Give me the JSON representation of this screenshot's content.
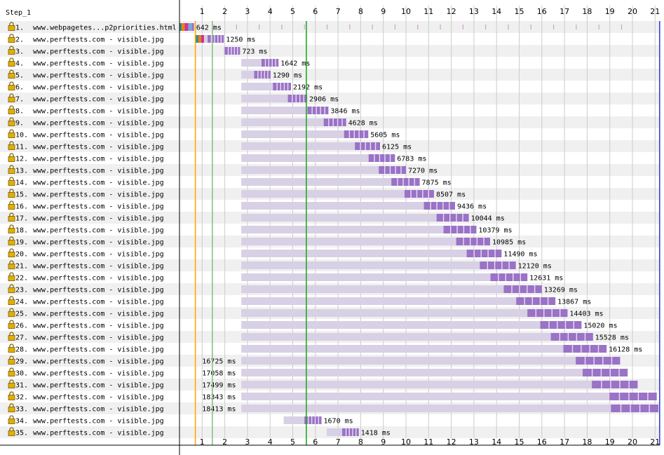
{
  "chart_data": {
    "type": "waterfall",
    "step_label": "Step_1",
    "x_unit": "seconds",
    "xlim": [
      0,
      21.2
    ],
    "x_ticks": [
      1,
      2,
      3,
      4,
      5,
      6,
      7,
      8,
      9,
      10,
      11,
      12,
      13,
      14,
      15,
      16,
      17,
      18,
      19,
      20,
      21
    ],
    "markers": [
      {
        "name": "start-render",
        "at": 0.7,
        "color": "#ffa800"
      },
      {
        "name": "first-paint",
        "at": 1.45,
        "color": "#88c188"
      },
      {
        "name": "dom-content-loaded",
        "at": 5.6,
        "color": "#22aa22"
      },
      {
        "name": "document-complete",
        "at": 21.2,
        "color": "#3344cc"
      }
    ],
    "requests": [
      {
        "num": "1.",
        "url": "www.webpagetes...p2priorities.html",
        "start": 0.0,
        "duration_ms": 642,
        "label": "642 ms"
      },
      {
        "num": "2.",
        "url": "www.perftests.com - visible.jpg",
        "start": 0.71,
        "duration_ms": 1250,
        "label": "1250 ms"
      },
      {
        "num": "3.",
        "url": "www.perftests.com - visible.jpg",
        "start": 1.95,
        "duration_ms": 723,
        "label": "723 ms"
      },
      {
        "num": "4.",
        "url": "www.perftests.com - visible.jpg",
        "start": 2.73,
        "duration_ms": 1642,
        "label": "1642 ms"
      },
      {
        "num": "5.",
        "url": "www.perftests.com - visible.jpg",
        "start": 2.73,
        "duration_ms": 1290,
        "label": "1290 ms"
      },
      {
        "num": "6.",
        "url": "www.perftests.com - visible.jpg",
        "start": 2.73,
        "duration_ms": 2192,
        "label": "2192 ms"
      },
      {
        "num": "7.",
        "url": "www.perftests.com - visible.jpg",
        "start": 2.73,
        "duration_ms": 2906,
        "label": "2906 ms"
      },
      {
        "num": "8.",
        "url": "www.perftests.com - visible.jpg",
        "start": 2.73,
        "duration_ms": 3846,
        "label": "3846 ms"
      },
      {
        "num": "9.",
        "url": "www.perftests.com - visible.jpg",
        "start": 2.73,
        "duration_ms": 4628,
        "label": "4628 ms"
      },
      {
        "num": "10.",
        "url": "www.perftests.com - visible.jpg",
        "start": 2.73,
        "duration_ms": 5605,
        "label": "5605 ms"
      },
      {
        "num": "11.",
        "url": "www.perftests.com - visible.jpg",
        "start": 2.73,
        "duration_ms": 6125,
        "label": "6125 ms"
      },
      {
        "num": "12.",
        "url": "www.perftests.com - visible.jpg",
        "start": 2.73,
        "duration_ms": 6783,
        "label": "6783 ms"
      },
      {
        "num": "13.",
        "url": "www.perftests.com - visible.jpg",
        "start": 2.73,
        "duration_ms": 7270,
        "label": "7270 ms"
      },
      {
        "num": "14.",
        "url": "www.perftests.com - visible.jpg",
        "start": 2.73,
        "duration_ms": 7875,
        "label": "7875 ms"
      },
      {
        "num": "15.",
        "url": "www.perftests.com - visible.jpg",
        "start": 2.73,
        "duration_ms": 8507,
        "label": "8507 ms"
      },
      {
        "num": "16.",
        "url": "www.perftests.com - visible.jpg",
        "start": 2.73,
        "duration_ms": 9436,
        "label": "9436 ms"
      },
      {
        "num": "17.",
        "url": "www.perftests.com - visible.jpg",
        "start": 2.73,
        "duration_ms": 10044,
        "label": "10044 ms"
      },
      {
        "num": "18.",
        "url": "www.perftests.com - visible.jpg",
        "start": 2.73,
        "duration_ms": 10379,
        "label": "10379 ms"
      },
      {
        "num": "19.",
        "url": "www.perftests.com - visible.jpg",
        "start": 2.73,
        "duration_ms": 10985,
        "label": "10985 ms"
      },
      {
        "num": "20.",
        "url": "www.perftests.com - visible.jpg",
        "start": 2.73,
        "duration_ms": 11490,
        "label": "11490 ms"
      },
      {
        "num": "21.",
        "url": "www.perftests.com - visible.jpg",
        "start": 2.73,
        "duration_ms": 12120,
        "label": "12120 ms"
      },
      {
        "num": "22.",
        "url": "www.perftests.com - visible.jpg",
        "start": 2.73,
        "duration_ms": 12631,
        "label": "12631 ms"
      },
      {
        "num": "23.",
        "url": "www.perftests.com - visible.jpg",
        "start": 2.73,
        "duration_ms": 13269,
        "label": "13269 ms"
      },
      {
        "num": "24.",
        "url": "www.perftests.com - visible.jpg",
        "start": 2.73,
        "duration_ms": 13867,
        "label": "13867 ms"
      },
      {
        "num": "25.",
        "url": "www.perftests.com - visible.jpg",
        "start": 2.73,
        "duration_ms": 14403,
        "label": "14403 ms"
      },
      {
        "num": "26.",
        "url": "www.perftests.com - visible.jpg",
        "start": 2.73,
        "duration_ms": 15020,
        "label": "15020 ms"
      },
      {
        "num": "27.",
        "url": "www.perftests.com - visible.jpg",
        "start": 2.73,
        "duration_ms": 15528,
        "label": "15528 ms"
      },
      {
        "num": "28.",
        "url": "www.perftests.com - visible.jpg",
        "start": 2.73,
        "duration_ms": 16128,
        "label": "16128 ms"
      },
      {
        "num": "29.",
        "url": "www.perftests.com - visible.jpg",
        "start": 2.73,
        "duration_ms": 16725,
        "label": "16725 ms"
      },
      {
        "num": "30.",
        "url": "www.perftests.com - visible.jpg",
        "start": 2.73,
        "duration_ms": 17058,
        "label": "17058 ms"
      },
      {
        "num": "31.",
        "url": "www.perftests.com - visible.jpg",
        "start": 2.73,
        "duration_ms": 17499,
        "label": "17499 ms"
      },
      {
        "num": "32.",
        "url": "www.perftests.com - visible.jpg",
        "start": 2.73,
        "duration_ms": 18343,
        "label": "18343 ms"
      },
      {
        "num": "33.",
        "url": "www.perftests.com - visible.jpg",
        "start": 2.73,
        "duration_ms": 18413,
        "label": "18413 ms"
      },
      {
        "num": "34.",
        "url": "www.perftests.com - visible.jpg",
        "start": 4.6,
        "duration_ms": 1670,
        "label": "1670 ms"
      },
      {
        "num": "35.",
        "url": "www.perftests.com - visible.jpg",
        "start": 6.5,
        "duration_ms": 1418,
        "label": "1418 ms"
      }
    ],
    "colors": {
      "row_alt": "#f0f0f0",
      "bar_wait": "#d8d0e4",
      "bar_download": "#9a72c6",
      "dns": "#2f8f8f",
      "connect": "#f08000",
      "ssl": "#cc3399",
      "html_ttfb": "#7aa8d8",
      "lock_icon": "#e0b000",
      "grid": "#cccccc"
    }
  }
}
